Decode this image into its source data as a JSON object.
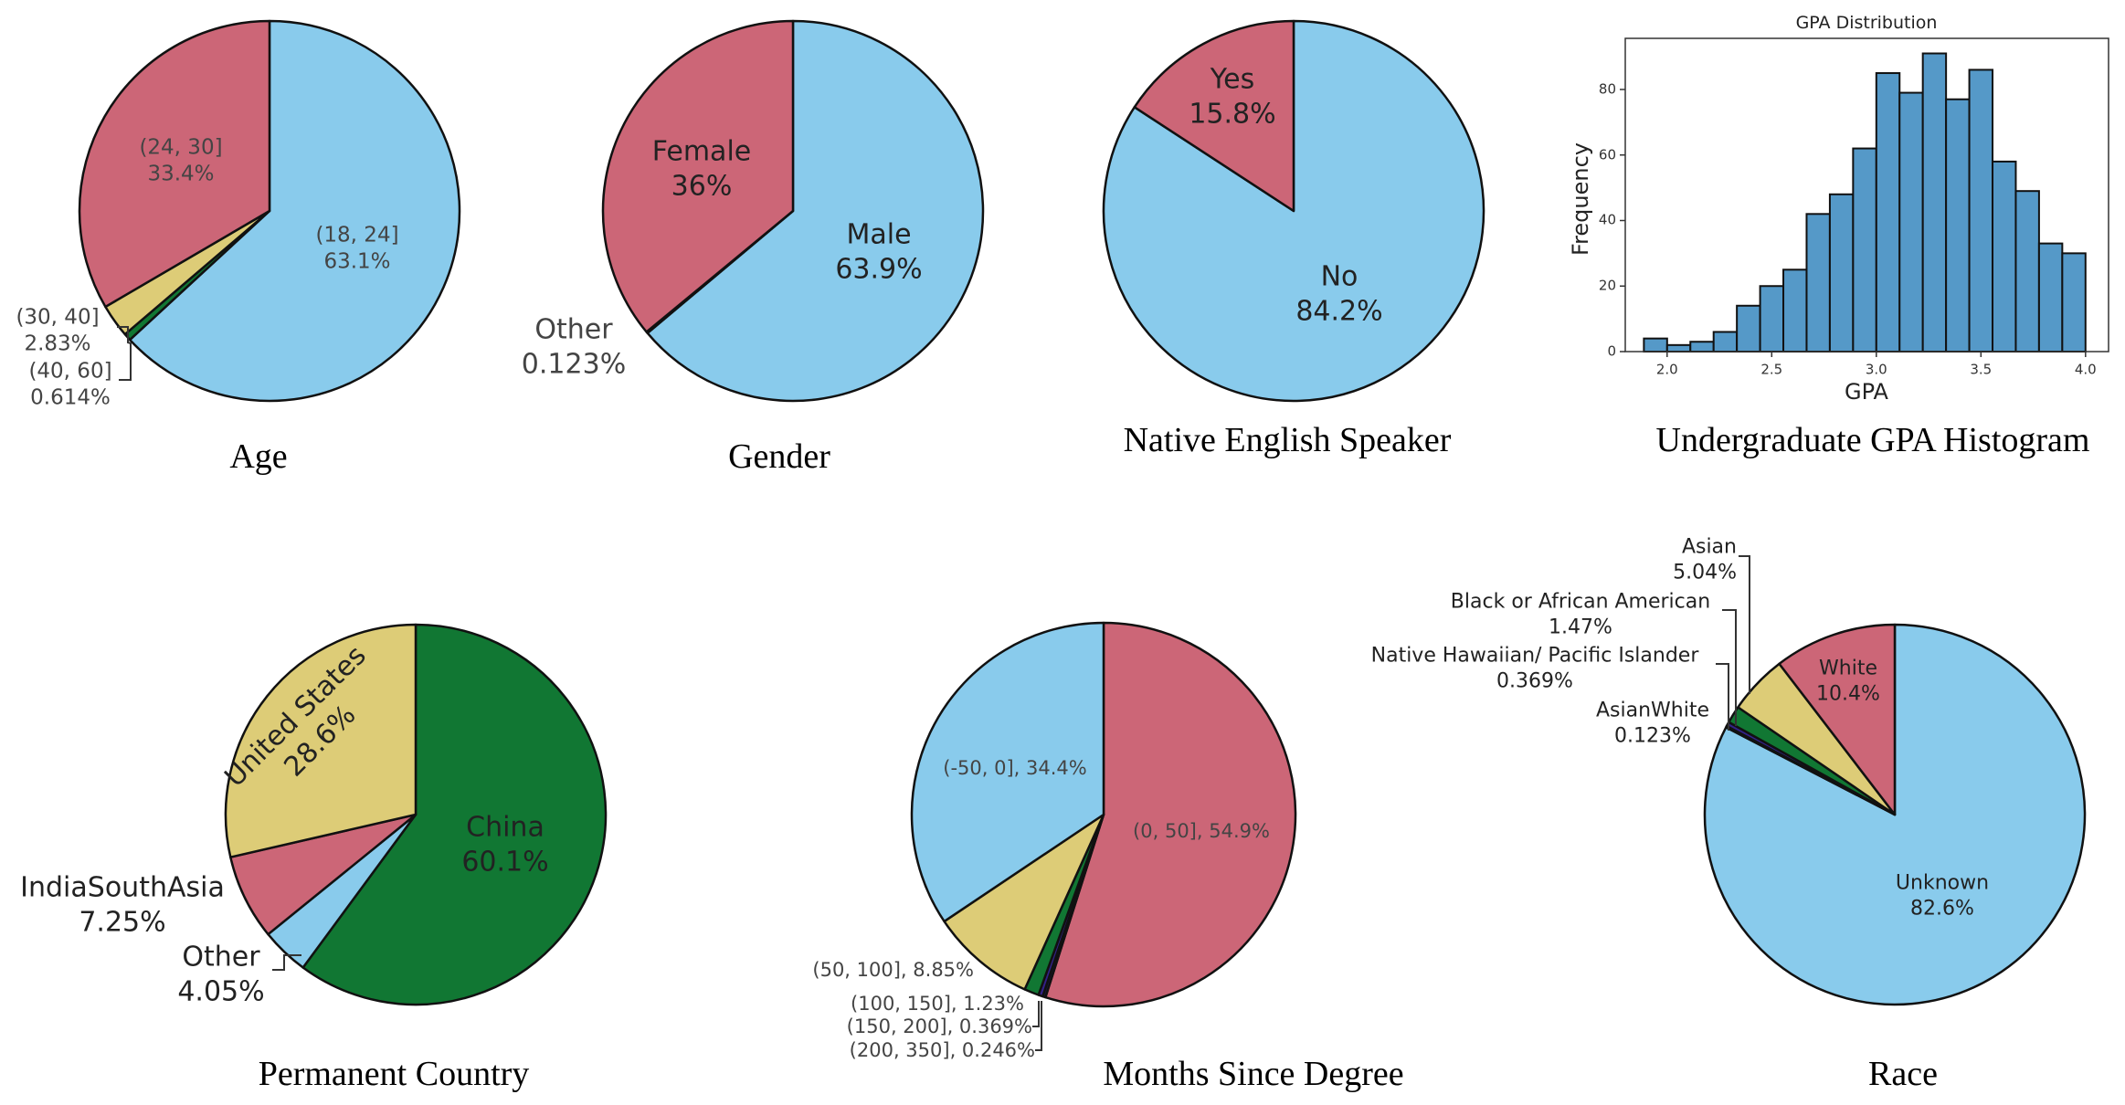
{
  "colors": {
    "blue": "#89CBEC",
    "red": "#CC6677",
    "yellow": "#DDCC77",
    "green": "#117733",
    "dark": "#332288",
    "navy": "#1a1a4a",
    "hist": "#5599C8"
  },
  "chart_data": [
    {
      "type": "pie",
      "caption": "Age",
      "slices": [
        {
          "label": "(18, 24]",
          "pct": "63.1%",
          "value": 63.1,
          "color": "#89CBEC"
        },
        {
          "label": "(40, 60]",
          "pct": "0.614%",
          "value": 0.614,
          "color": "#117733"
        },
        {
          "label": "(30, 40]",
          "pct": "2.83%",
          "value": 2.83,
          "color": "#DDCC77"
        },
        {
          "label": "(24, 30]",
          "pct": "33.4%",
          "value": 33.4,
          "color": "#CC6677"
        }
      ]
    },
    {
      "type": "pie",
      "caption": "Gender",
      "slices": [
        {
          "label": "Male",
          "pct": "63.9%",
          "value": 63.9,
          "color": "#89CBEC"
        },
        {
          "label": "Other",
          "pct": "0.123%",
          "value": 0.123,
          "color": "#332288"
        },
        {
          "label": "Female",
          "pct": "36%",
          "value": 36,
          "color": "#CC6677"
        }
      ]
    },
    {
      "type": "pie",
      "caption": "Native English Speaker",
      "slices": [
        {
          "label": "No",
          "pct": "84.2%",
          "value": 84.2,
          "color": "#89CBEC"
        },
        {
          "label": "Yes",
          "pct": "15.8%",
          "value": 15.8,
          "color": "#CC6677"
        }
      ]
    },
    {
      "type": "bar",
      "caption": "Undergraduate GPA Histogram",
      "title": "GPA Distribution",
      "xlabel": "GPA",
      "ylabel": "Frequency",
      "bin_start": 1.889,
      "bin_width": 0.1111,
      "values": [
        4,
        2,
        3,
        6,
        14,
        20,
        25,
        42,
        48,
        62,
        85,
        79,
        91,
        77,
        86,
        58,
        49,
        33,
        30
      ],
      "xlim": [
        1.8,
        4.11
      ],
      "ylim": [
        0,
        95.6
      ],
      "xticks": [
        "2.0",
        "2.5",
        "3.0",
        "3.5",
        "4.0"
      ],
      "yticks": [
        "0",
        "20",
        "40",
        "60",
        "80"
      ],
      "grid": false
    },
    {
      "type": "pie",
      "caption": "Permanent Country",
      "slices": [
        {
          "label": "China",
          "pct": "60.1%",
          "value": 60.1,
          "color": "#117733"
        },
        {
          "label": "Other",
          "pct": "4.05%",
          "value": 4.05,
          "color": "#89CBEC"
        },
        {
          "label": "IndiaSouthAsia",
          "pct": "7.25%",
          "value": 7.25,
          "color": "#CC6677"
        },
        {
          "label": "United States",
          "pct": "28.6%",
          "value": 28.6,
          "color": "#DDCC77"
        }
      ]
    },
    {
      "type": "pie",
      "caption": "Months Since Degree",
      "slices": [
        {
          "label": "(0, 50], 54.9%",
          "value": 54.9,
          "color": "#CC6677"
        },
        {
          "label": "(200, 350], 0.246%",
          "value": 0.246,
          "color": "#1a1a4a"
        },
        {
          "label": "(150, 200], 0.369%",
          "value": 0.369,
          "color": "#332288"
        },
        {
          "label": "(100, 150], 1.23%",
          "value": 1.23,
          "color": "#117733"
        },
        {
          "label": "(50, 100], 8.85%",
          "value": 8.85,
          "color": "#DDCC77"
        },
        {
          "label": "(-50, 0], 34.4%",
          "value": 34.4,
          "color": "#89CBEC"
        }
      ]
    },
    {
      "type": "pie",
      "caption": "Race",
      "slices": [
        {
          "label": "Unknown",
          "pct": "82.6%",
          "value": 82.6,
          "color": "#89CBEC"
        },
        {
          "label": "AsianWhite",
          "pct": "0.123%",
          "value": 0.123,
          "color": "#1a1a4a"
        },
        {
          "label": "Native Hawaiian/ Pacific Islander",
          "pct": "0.369%",
          "value": 0.369,
          "color": "#332288"
        },
        {
          "label": "Black or African American",
          "pct": "1.47%",
          "value": 1.47,
          "color": "#117733"
        },
        {
          "label": "Asian",
          "pct": "5.04%",
          "value": 5.04,
          "color": "#DDCC77"
        },
        {
          "label": "White",
          "pct": "10.4%",
          "value": 10.4,
          "color": "#CC6677"
        }
      ]
    }
  ]
}
